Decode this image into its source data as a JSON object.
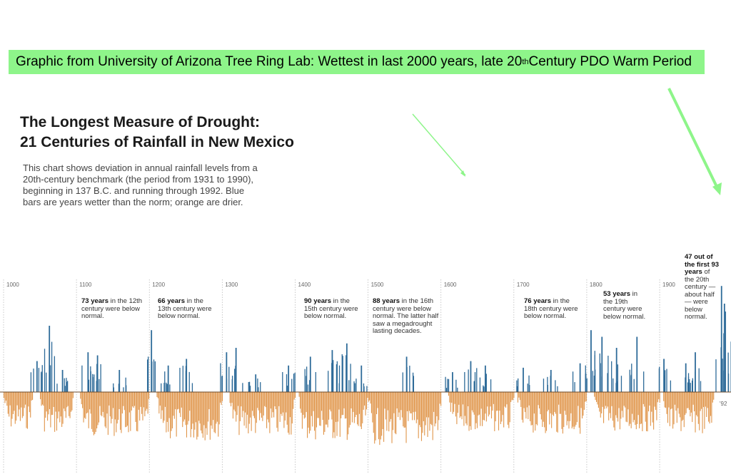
{
  "banner": {
    "text_before": "Graphic from University of Arizona Tree Ring Lab: Wettest in last 2000 years, late 20",
    "sup": "th",
    "text_after": " Century PDO Warm Period"
  },
  "colors": {
    "wet": "#2e6b99",
    "dry": "#e0954a",
    "banner": "#8ef58a",
    "arrow": "#8ef58a"
  },
  "chart_data": {
    "type": "bar",
    "title": "The Longest Measure of Drought: 21 Centuries of Rainfall in New Mexico",
    "title_lines": [
      "The Longest Measure of Drought:",
      "21 Centuries of Rainfall in New Mexico"
    ],
    "subtitle_lines": [
      "This chart shows deviation in annual rainfall levels from a",
      "20th-century benchmark (the period from 1931 to 1990),",
      "beginning in 137 B.C. and running through 1992. Blue",
      "bars are years wetter than the norm; orange are drier."
    ],
    "x_range": [
      1000,
      1992
    ],
    "century_ticks": [
      "1000",
      "1100",
      "1200",
      "1300",
      "1400",
      "1500",
      "1600",
      "1700",
      "1800",
      "1900"
    ],
    "end_label": "'92",
    "wet_peaks": [
      {
        "year": 1045,
        "value": 70
      },
      {
        "year": 1062,
        "value": 150
      },
      {
        "year": 1080,
        "value": 50
      },
      {
        "year": 1115,
        "value": 90
      },
      {
        "year": 1128,
        "value": 83
      },
      {
        "year": 1158,
        "value": 50
      },
      {
        "year": 1202,
        "value": 140
      },
      {
        "year": 1225,
        "value": 60
      },
      {
        "year": 1250,
        "value": 75
      },
      {
        "year": 1305,
        "value": 90
      },
      {
        "year": 1318,
        "value": 100
      },
      {
        "year": 1345,
        "value": 40
      },
      {
        "year": 1390,
        "value": 60
      },
      {
        "year": 1420,
        "value": 80
      },
      {
        "year": 1450,
        "value": 95
      },
      {
        "year": 1470,
        "value": 110
      },
      {
        "year": 1490,
        "value": 60
      },
      {
        "year": 1552,
        "value": 80
      },
      {
        "year": 1615,
        "value": 45
      },
      {
        "year": 1640,
        "value": 70
      },
      {
        "year": 1660,
        "value": 60
      },
      {
        "year": 1712,
        "value": 55
      },
      {
        "year": 1750,
        "value": 50
      },
      {
        "year": 1790,
        "value": 65
      },
      {
        "year": 1805,
        "value": 140
      },
      {
        "year": 1820,
        "value": 125
      },
      {
        "year": 1840,
        "value": 100
      },
      {
        "year": 1868,
        "value": 125
      },
      {
        "year": 1905,
        "value": 75
      },
      {
        "year": 1935,
        "value": 65
      },
      {
        "year": 1948,
        "value": 90
      },
      {
        "year": 1984,
        "value": 240
      },
      {
        "year": 1988,
        "value": 200
      }
    ],
    "dry_regions": [
      {
        "start": 1000,
        "end": 1040,
        "value": -85
      },
      {
        "start": 1050,
        "end": 1095,
        "value": -95
      },
      {
        "start": 1105,
        "end": 1200,
        "value": -100
      },
      {
        "start": 1210,
        "end": 1300,
        "value": -110
      },
      {
        "start": 1310,
        "end": 1400,
        "value": -100
      },
      {
        "start": 1405,
        "end": 1500,
        "value": -110
      },
      {
        "start": 1500,
        "end": 1600,
        "value": -120
      },
      {
        "start": 1610,
        "end": 1700,
        "value": -90
      },
      {
        "start": 1705,
        "end": 1800,
        "value": -95
      },
      {
        "start": 1810,
        "end": 1900,
        "value": -90
      },
      {
        "start": 1905,
        "end": 1975,
        "value": -95
      }
    ],
    "annotations": [
      {
        "bold": "73 years",
        "rest": " in the 12th century were below normal."
      },
      {
        "bold": "66 years",
        "rest": " in the 13th century were below normal."
      },
      {
        "bold": "90 years",
        "rest": " in the 15th century were below normal."
      },
      {
        "bold": "88 years",
        "rest": " in the 16th century were below normal. The latter half saw a megadrought lasting decades."
      },
      {
        "bold": "76 years",
        "rest": " in the 18th century were below normal."
      },
      {
        "bold": "53 years",
        "rest": " in the 19th century were below normal."
      },
      {
        "bold": "47 out of the first 93 years",
        "rest": " of the 20th century — about half — were below normal."
      }
    ]
  }
}
